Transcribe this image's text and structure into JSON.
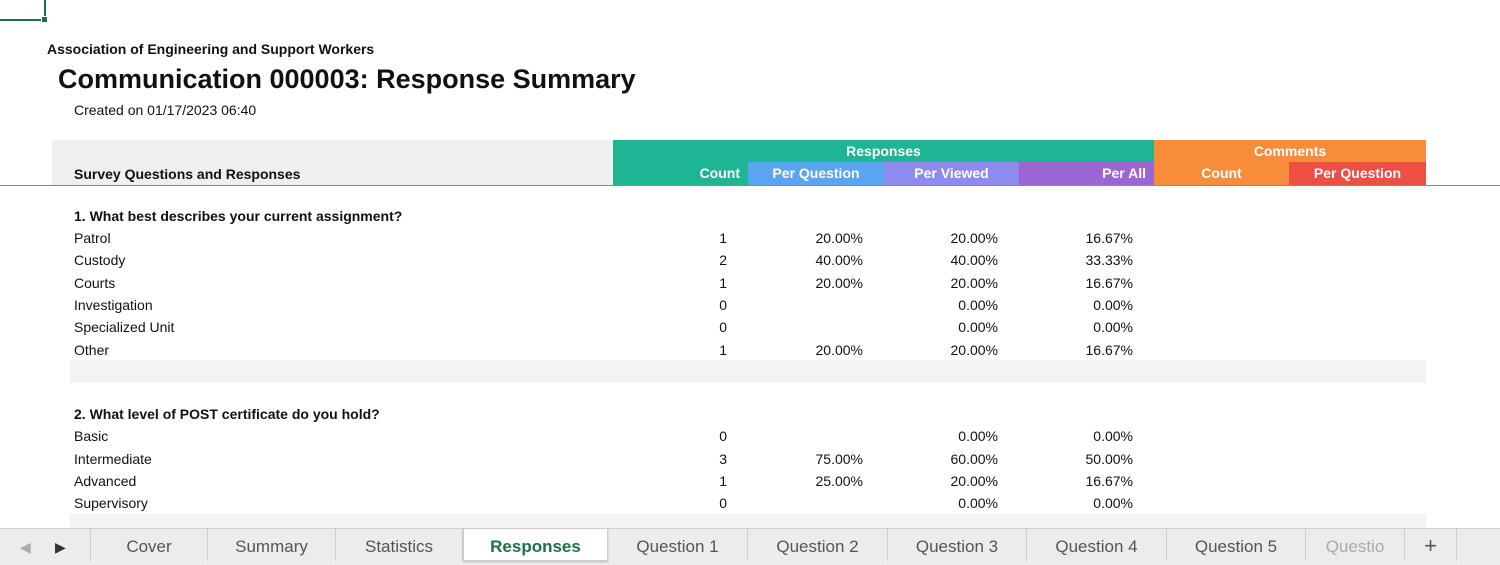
{
  "header": {
    "org": "Association of Engineering and Support Workers",
    "title": "Communication 000003: Response Summary",
    "created": "Created on 01/17/2023 06:40"
  },
  "table_header": {
    "survey_label": "Survey Questions and Responses",
    "responses": "Responses",
    "comments": "Comments",
    "count": "Count",
    "per_question": "Per Question",
    "per_viewed": "Per Viewed",
    "per_all": "Per All",
    "comment_count": "Count",
    "comment_per_question": "Per Question"
  },
  "questions": [
    {
      "title": "1. What best describes your current assignment?",
      "answers": [
        {
          "label": "Patrol",
          "count": "1",
          "per_question": "20.00%",
          "per_viewed": "20.00%",
          "per_all": "16.67%"
        },
        {
          "label": "Custody",
          "count": "2",
          "per_question": "40.00%",
          "per_viewed": "40.00%",
          "per_all": "33.33%"
        },
        {
          "label": "Courts",
          "count": "1",
          "per_question": "20.00%",
          "per_viewed": "20.00%",
          "per_all": "16.67%"
        },
        {
          "label": "Investigation",
          "count": "0",
          "per_question": "",
          "per_viewed": "0.00%",
          "per_all": "0.00%"
        },
        {
          "label": "Specialized Unit",
          "count": "0",
          "per_question": "",
          "per_viewed": "0.00%",
          "per_all": "0.00%"
        },
        {
          "label": "Other",
          "count": "1",
          "per_question": "20.00%",
          "per_viewed": "20.00%",
          "per_all": "16.67%"
        }
      ]
    },
    {
      "title": "2. What level of POST certificate do you hold?",
      "answers": [
        {
          "label": "Basic",
          "count": "0",
          "per_question": "",
          "per_viewed": "0.00%",
          "per_all": "0.00%"
        },
        {
          "label": "Intermediate",
          "count": "3",
          "per_question": "75.00%",
          "per_viewed": "60.00%",
          "per_all": "50.00%"
        },
        {
          "label": "Advanced",
          "count": "1",
          "per_question": "25.00%",
          "per_viewed": "20.00%",
          "per_all": "16.67%"
        },
        {
          "label": "Supervisory",
          "count": "0",
          "per_question": "",
          "per_viewed": "0.00%",
          "per_all": "0.00%"
        }
      ]
    }
  ],
  "tabs": {
    "nav_prev": "◀",
    "nav_next": "▶",
    "items": [
      "Cover",
      "Summary",
      "Statistics",
      "Responses",
      "Question 1",
      "Question 2",
      "Question 3",
      "Question 4",
      "Question 5",
      "Questio"
    ],
    "active": "Responses",
    "add": "+"
  },
  "colors": {
    "responses": "#1db594",
    "per_question": "#5aa4f1",
    "per_viewed": "#8c8cf0",
    "per_all": "#9b66d3",
    "comments": "#f78c3a",
    "comment_per_question": "#ee4f45",
    "active_tab": "#1e7145"
  }
}
